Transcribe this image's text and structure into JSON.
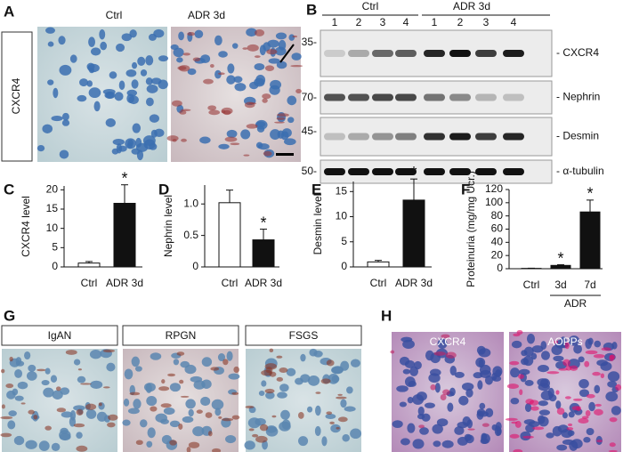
{
  "figure": {
    "panels": [
      "A",
      "B",
      "C",
      "D",
      "E",
      "F",
      "G",
      "H"
    ],
    "a": {
      "columns": [
        "Ctrl",
        "ADR 3d"
      ],
      "row_label": "CXCR4"
    },
    "b": {
      "groups": [
        "Ctrl",
        "ADR 3d"
      ],
      "lanes": [
        "1",
        "2",
        "3",
        "4",
        "1",
        "2",
        "3",
        "4"
      ],
      "markers": [
        "35-",
        "70-",
        "45-",
        "50-"
      ],
      "bands": [
        "- CXCR4",
        "- Nephrin",
        "- Desmin",
        "- α-tubulin"
      ]
    },
    "g": {
      "labels": [
        "IgAN",
        "RPGN",
        "FSGS"
      ]
    },
    "h": {
      "labels": [
        "CXCR4",
        "AOPPs"
      ]
    }
  },
  "chart_data": [
    {
      "type": "bar",
      "ylabel": "CXCR4 level",
      "categories": [
        "Ctrl",
        "ADR 3d"
      ],
      "values": [
        1,
        16.5
      ],
      "errors": [
        0.4,
        4.8
      ],
      "colors": [
        "#ffffff",
        "#111111"
      ],
      "ylim": [
        0,
        21
      ],
      "yticks": [
        0,
        5,
        10,
        15,
        20
      ],
      "annotations": [
        {
          "text": "*",
          "at": "ADR 3d"
        }
      ]
    },
    {
      "type": "bar",
      "ylabel": "Nephrin level",
      "categories": [
        "Ctrl",
        "ADR 3d"
      ],
      "values": [
        1.02,
        0.43
      ],
      "errors": [
        0.2,
        0.17
      ],
      "colors": [
        "#ffffff",
        "#111111"
      ],
      "ylim": [
        0,
        1.3
      ],
      "yticks": [
        0,
        0.5,
        {
          "value": 1,
          "label": "1.0"
        }
      ],
      "annotations": [
        {
          "text": "*",
          "at": "ADR 3d"
        }
      ]
    },
    {
      "type": "bar",
      "ylabel": "Desmin level",
      "categories": [
        "Ctrl",
        "ADR 3d"
      ],
      "values": [
        1,
        13.3
      ],
      "errors": [
        0.3,
        4.2
      ],
      "colors": [
        "#ffffff",
        "#111111"
      ],
      "ylim": [
        0,
        17
      ],
      "yticks": [
        0,
        5,
        10,
        15
      ],
      "annotations": [
        {
          "text": "*",
          "at": "ADR 3d"
        }
      ]
    },
    {
      "type": "bar",
      "ylabel": "Proteinuria (mg/mg Ucr.)",
      "categories": [
        "Ctrl",
        "3d",
        "7d"
      ],
      "values": [
        0.5,
        5,
        86
      ],
      "errors": [
        0.3,
        1,
        18
      ],
      "colors": [
        "#ffffff",
        "#111111",
        "#111111"
      ],
      "ylim": [
        0,
        120
      ],
      "yticks": [
        0,
        20,
        40,
        60,
        80,
        100,
        120
      ],
      "group_label": "ADR",
      "annotations": [
        {
          "text": "*",
          "at": "3d"
        },
        {
          "text": "*",
          "at": "7d"
        }
      ]
    }
  ]
}
